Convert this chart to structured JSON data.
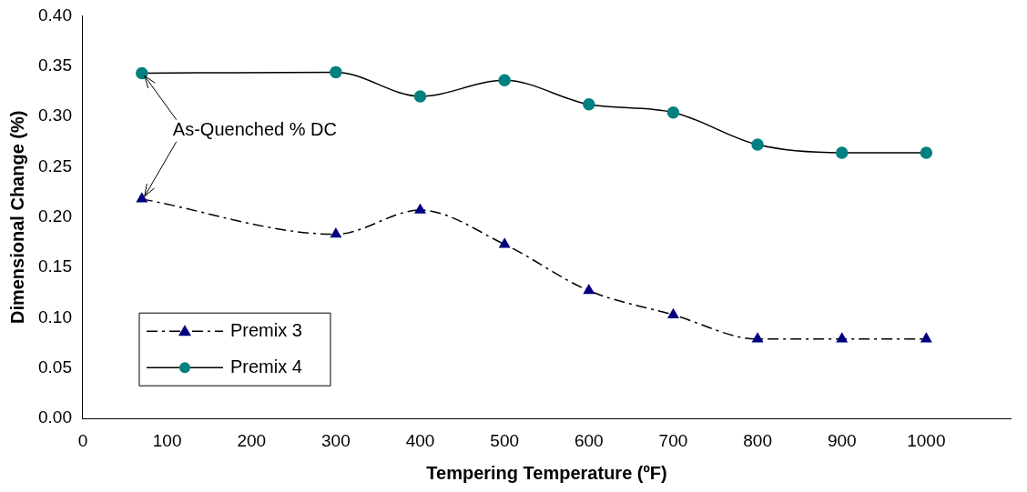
{
  "chart_data": {
    "type": "line",
    "xlabel": "Tempering Temperature (ºF)",
    "ylabel": "Dimensional Change (%)",
    "x": [
      70,
      300,
      400,
      500,
      600,
      700,
      800,
      900,
      1000
    ],
    "series": [
      {
        "name": "Premix 3",
        "color": "#000080",
        "marker": "triangle",
        "line_style": "dashed",
        "values": [
          0.218,
          0.183,
          0.207,
          0.173,
          0.127,
          0.103,
          0.079,
          0.079,
          0.079
        ]
      },
      {
        "name": "Premix 4",
        "color": "#008080",
        "marker": "circle",
        "line_style": "solid",
        "values": [
          0.343,
          0.344,
          0.32,
          0.336,
          0.312,
          0.304,
          0.272,
          0.264,
          0.264
        ]
      }
    ],
    "xlim": [
      0,
      1100
    ],
    "xticks": [
      0,
      100,
      200,
      300,
      400,
      500,
      600,
      700,
      800,
      900,
      1000
    ],
    "ylim": [
      0,
      0.4
    ],
    "yticks": [
      {
        "value": 0,
        "label": "0.00"
      },
      {
        "value": 0.05,
        "label": "0.05"
      },
      {
        "value": 0.1,
        "label": "0.10"
      },
      {
        "value": 0.15,
        "label": "0.15"
      },
      {
        "value": 0.2,
        "label": "0.20"
      },
      {
        "value": 0.25,
        "label": "0.25"
      },
      {
        "value": 0.3,
        "label": "0.30"
      },
      {
        "value": 0.35,
        "label": "0.35"
      },
      {
        "value": 0.4,
        "label": "0.40"
      }
    ],
    "annotations": [
      {
        "text": "As-Quenched % DC",
        "x": 70,
        "y": 0.343
      }
    ],
    "legend": "bottom left",
    "grid": false
  }
}
